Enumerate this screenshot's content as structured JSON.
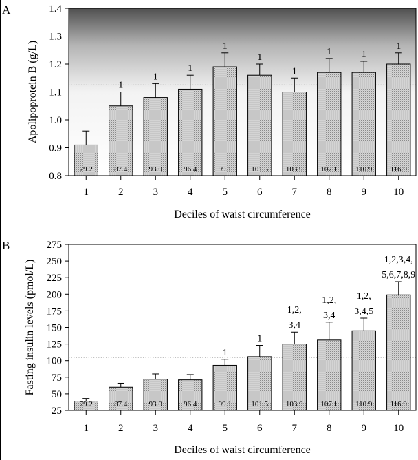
{
  "chart_data": [
    {
      "type": "bar",
      "panel_label": "A",
      "categories": [
        "1",
        "2",
        "3",
        "4",
        "5",
        "6",
        "7",
        "8",
        "9",
        "10"
      ],
      "values": [
        0.91,
        1.05,
        1.08,
        1.11,
        1.19,
        1.16,
        1.1,
        1.17,
        1.17,
        1.2
      ],
      "error_upper": [
        0.96,
        1.1,
        1.13,
        1.16,
        1.24,
        1.2,
        1.15,
        1.22,
        1.21,
        1.24
      ],
      "bar_labels": [
        "79.2",
        "87.4",
        "93.0",
        "96.4",
        "99.1",
        "101.5",
        "103.9",
        "107.1",
        "110.9",
        "116.9"
      ],
      "annotations": [
        [],
        [
          "1"
        ],
        [
          "1"
        ],
        [
          "1"
        ],
        [
          "1"
        ],
        [
          "1"
        ],
        [
          "1"
        ],
        [
          "1"
        ],
        [
          "1"
        ],
        [
          "1"
        ]
      ],
      "xlabel": "Deciles of waist circumference",
      "ylabel": "Apolipoprotein B (g/L)",
      "ylim": [
        0.8,
        1.4
      ],
      "yticks": [
        0.8,
        0.9,
        1.0,
        1.1,
        1.2,
        1.3,
        1.4
      ],
      "ytick_labels": [
        "0.8",
        "0.9",
        "1.0",
        "1.1",
        "1.2",
        "1.3",
        "1.4"
      ],
      "reference_line": 1.125,
      "bar_color": "#c8c8c8",
      "background": "gradient"
    },
    {
      "type": "bar",
      "panel_label": "B",
      "categories": [
        "1",
        "2",
        "3",
        "4",
        "5",
        "6",
        "7",
        "8",
        "9",
        "10"
      ],
      "values": [
        39,
        60,
        72,
        71,
        93,
        106,
        125,
        131,
        145,
        199
      ],
      "error_upper": [
        43,
        66,
        80,
        79,
        102,
        123,
        143,
        158,
        164,
        219
      ],
      "bar_labels": [
        "79.2",
        "87.4",
        "93.0",
        "96.4",
        "99.1",
        "101.5",
        "103.9",
        "107.1",
        "110.9",
        "116.9"
      ],
      "annotations": [
        [],
        [],
        [],
        [],
        [
          "1"
        ],
        [
          "1"
        ],
        [
          "1,2,",
          "3,4"
        ],
        [
          "1,2,",
          "3,4"
        ],
        [
          "1,2,",
          "3,4,5"
        ],
        [
          "1,2,3,4,",
          "5,6,7,8,9"
        ]
      ],
      "xlabel": "Deciles of waist circumference",
      "ylabel": "Fasting insulin levels (pmol/L)",
      "ylim": [
        25,
        275
      ],
      "yticks": [
        25,
        50,
        75,
        100,
        125,
        150,
        175,
        200,
        225,
        250,
        275
      ],
      "ytick_labels": [
        "25",
        "50",
        "75",
        "100",
        "125",
        "150",
        "175",
        "200",
        "225",
        "250",
        "275"
      ],
      "reference_line": 105,
      "bar_color": "#c8c8c8",
      "background": "white"
    }
  ]
}
